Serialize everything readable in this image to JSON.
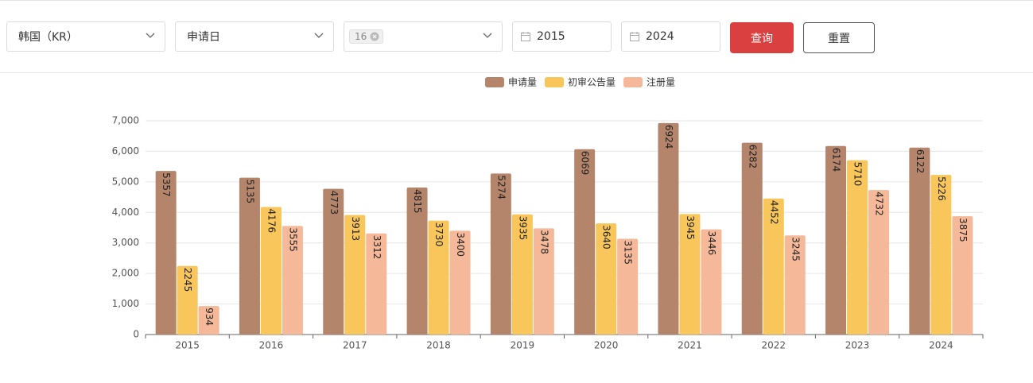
{
  "filters": {
    "country": "韩国（KR）",
    "date_type": "申请日",
    "tag": "16",
    "start_year": "2015",
    "end_year": "2024"
  },
  "buttons": {
    "query": "查询",
    "reset": "重置"
  },
  "chart_data": {
    "type": "bar",
    "categories": [
      "2015",
      "2016",
      "2017",
      "2018",
      "2019",
      "2020",
      "2021",
      "2022",
      "2023",
      "2024"
    ],
    "series": [
      {
        "name": "申请量",
        "color": "#b5856b",
        "values": [
          5357,
          5135,
          4773,
          4815,
          5274,
          6069,
          6924,
          6282,
          6174,
          6122
        ]
      },
      {
        "name": "初审公告量",
        "color": "#f8c65a",
        "values": [
          2245,
          4176,
          3913,
          3730,
          3935,
          3640,
          3945,
          4452,
          5710,
          5226
        ]
      },
      {
        "name": "注册量",
        "color": "#f5b99a",
        "values": [
          934,
          3555,
          3312,
          3400,
          3478,
          3135,
          3446,
          3245,
          4732,
          3875
        ]
      }
    ],
    "ylim": [
      0,
      7000
    ],
    "yticks": [
      0,
      {
        "value": 1000,
        "label": "1,000"
      },
      {
        "value": 2000,
        "label": "2,000"
      },
      {
        "value": 3000,
        "label": "3,000"
      },
      {
        "value": 4000,
        "label": "4,000"
      },
      {
        "value": 5000,
        "label": "5,000"
      },
      {
        "value": 6000,
        "label": "6,000"
      },
      {
        "value": 7000,
        "label": "7,000"
      }
    ],
    "grid": true,
    "legend": "top"
  }
}
